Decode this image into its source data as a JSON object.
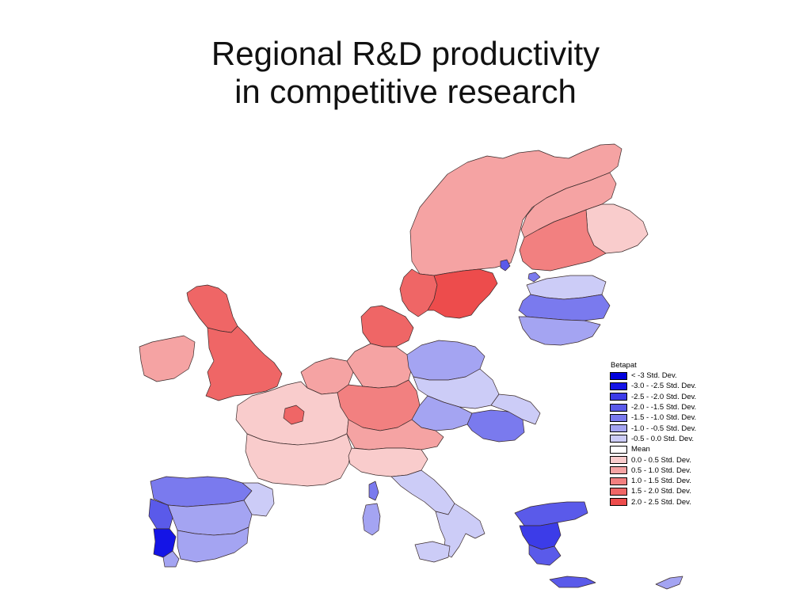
{
  "title": {
    "line1": "Regional R&D productivity",
    "line2": "in competitive research"
  },
  "legend": {
    "title": "Betapat",
    "entries": [
      {
        "label": "< -3 Std. Dev.",
        "color": "#0000dc"
      },
      {
        "label": "-3.0 - -2.5 Std. Dev.",
        "color": "#1414e6"
      },
      {
        "label": "-2.5 - -2.0 Std. Dev.",
        "color": "#3c3ce8"
      },
      {
        "label": "-2.0 - -1.5 Std. Dev.",
        "color": "#5a5aea"
      },
      {
        "label": "-1.5 - -1.0 Std. Dev.",
        "color": "#7a7aee"
      },
      {
        "label": "-1.0 - -0.5 Std. Dev.",
        "color": "#a4a4f2"
      },
      {
        "label": "-0.5 - 0.0 Std. Dev.",
        "color": "#ccccf7"
      },
      {
        "label": "Mean",
        "color": "#ffffff"
      },
      {
        "label": "0.0 - 0.5 Std. Dev.",
        "color": "#f9cccc"
      },
      {
        "label": "0.5 - 1.0 Std. Dev.",
        "color": "#f5a3a3"
      },
      {
        "label": "1.0 - 1.5 Std. Dev.",
        "color": "#f28080"
      },
      {
        "label": "1.5 - 2.0 Std. Dev.",
        "color": "#ef6666"
      },
      {
        "label": "2.0 - 2.5 Std. Dev.",
        "color": "#ed4c4c"
      }
    ]
  },
  "map_regions": [
    {
      "name": "norway-sweden-north",
      "class": 9
    },
    {
      "name": "finland-north",
      "class": 9
    },
    {
      "name": "finland-east",
      "class": 8
    },
    {
      "name": "finland-south",
      "class": 10
    },
    {
      "name": "sweden-south",
      "class": 12
    },
    {
      "name": "norway-south",
      "class": 11
    },
    {
      "name": "estonia",
      "class": 6
    },
    {
      "name": "latvia",
      "class": 4
    },
    {
      "name": "lithuania",
      "class": 5
    },
    {
      "name": "ireland",
      "class": 9
    },
    {
      "name": "uk-north",
      "class": 11
    },
    {
      "name": "uk-south",
      "class": 11
    },
    {
      "name": "denmark",
      "class": 11
    },
    {
      "name": "benelux",
      "class": 9
    },
    {
      "name": "germany-north",
      "class": 9
    },
    {
      "name": "germany-south",
      "class": 10
    },
    {
      "name": "poland-north",
      "class": 5
    },
    {
      "name": "poland-south",
      "class": 6
    },
    {
      "name": "czechia",
      "class": 5
    },
    {
      "name": "hungary",
      "class": 4
    },
    {
      "name": "romania-west",
      "class": 6
    },
    {
      "name": "france-north",
      "class": 8
    },
    {
      "name": "paris",
      "class": 11
    },
    {
      "name": "france-south",
      "class": 8
    },
    {
      "name": "alps",
      "class": 9
    },
    {
      "name": "italy-north",
      "class": 8
    },
    {
      "name": "italy-center",
      "class": 6
    },
    {
      "name": "italy-south",
      "class": 6
    },
    {
      "name": "sicily",
      "class": 6
    },
    {
      "name": "sardinia",
      "class": 5
    },
    {
      "name": "corsica",
      "class": 4
    },
    {
      "name": "spain-north",
      "class": 4
    },
    {
      "name": "spain-center",
      "class": 5
    },
    {
      "name": "spain-south",
      "class": 5
    },
    {
      "name": "catalonia",
      "class": 6
    },
    {
      "name": "portugal-north",
      "class": 3
    },
    {
      "name": "portugal-center",
      "class": 1
    },
    {
      "name": "portugal-south",
      "class": 5
    },
    {
      "name": "greece-north",
      "class": 3
    },
    {
      "name": "greece-center",
      "class": 2
    },
    {
      "name": "greece-south",
      "class": 3
    },
    {
      "name": "crete",
      "class": 3
    },
    {
      "name": "cyprus",
      "class": 5
    },
    {
      "name": "gotland",
      "class": 3
    },
    {
      "name": "aland",
      "class": 4
    }
  ]
}
